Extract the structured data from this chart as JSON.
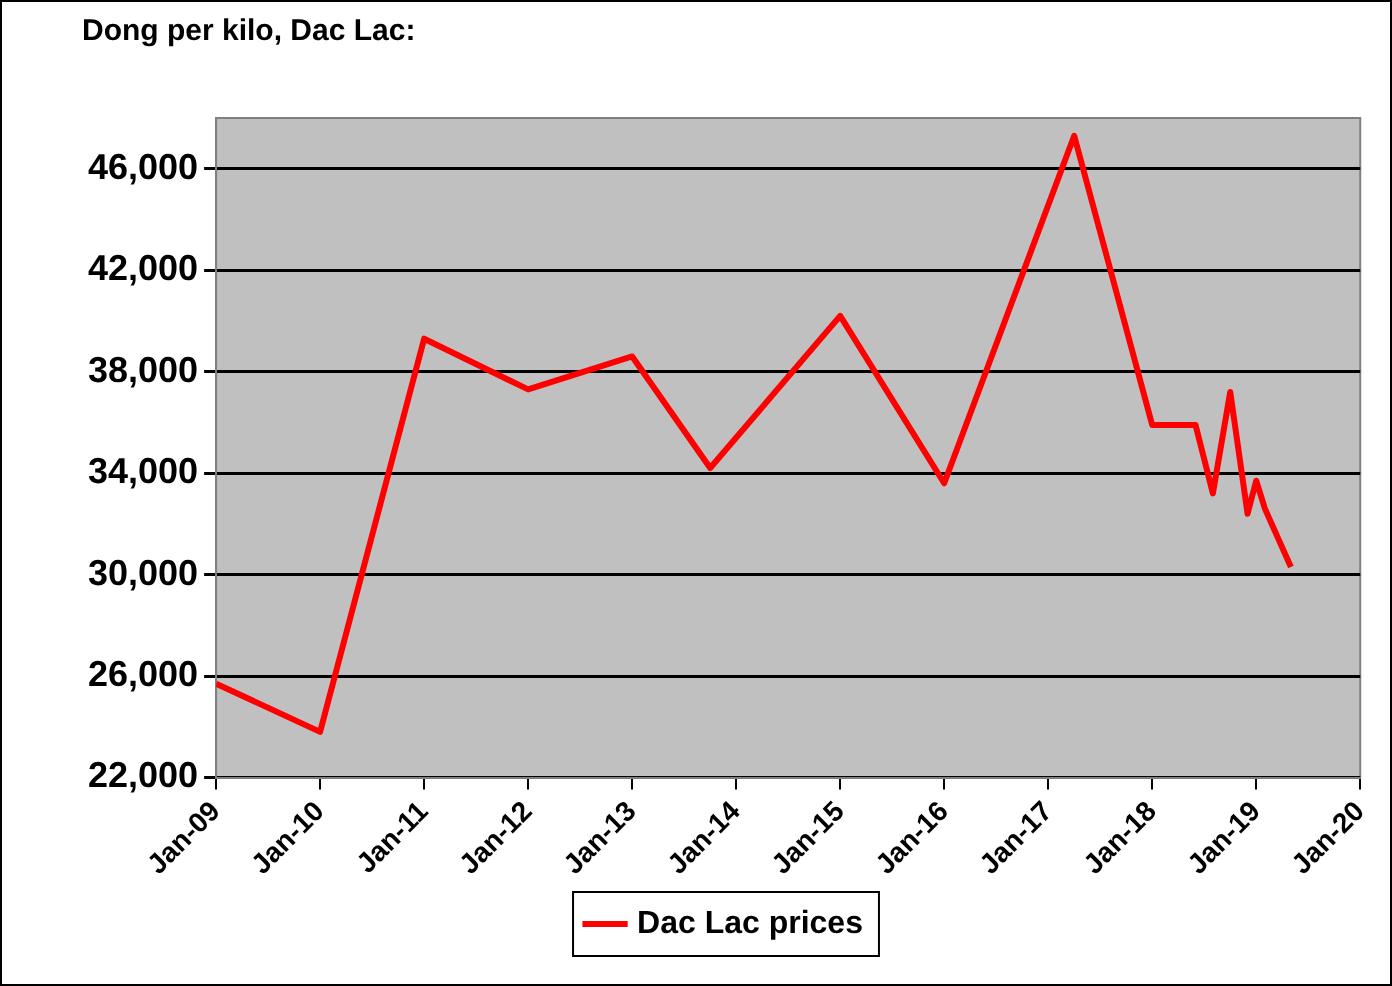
{
  "chart_data": {
    "type": "line",
    "title": "Dong per kilo, Dac Lac:",
    "x": [
      "2009-01",
      "2010-01",
      "2011-01",
      "2012-01",
      "2013-01",
      "2013-10",
      "2015-01",
      "2016-01",
      "2017-04",
      "2018-01",
      "2018-06",
      "2018-08",
      "2018-10",
      "2018-12",
      "2019-01",
      "2019-02",
      "2019-05"
    ],
    "series": [
      {
        "name": "Dac Lac prices",
        "color": "#ff0000",
        "values": [
          25700,
          23800,
          39300,
          37300,
          38600,
          34200,
          40200,
          33600,
          47300,
          35900,
          35900,
          33200,
          37200,
          32400,
          33700,
          32600,
          30300
        ]
      }
    ],
    "xlim": [
      "2009-01",
      "2020-01"
    ],
    "xticks": [
      {
        "value": "2009-01",
        "label": "Jan-09"
      },
      {
        "value": "2010-01",
        "label": "Jan-10"
      },
      {
        "value": "2011-01",
        "label": "Jan-11"
      },
      {
        "value": "2012-01",
        "label": "Jan-12"
      },
      {
        "value": "2013-01",
        "label": "Jan-13"
      },
      {
        "value": "2014-01",
        "label": "Jan-14"
      },
      {
        "value": "2015-01",
        "label": "Jan-15"
      },
      {
        "value": "2016-01",
        "label": "Jan-16"
      },
      {
        "value": "2017-01",
        "label": "Jan-17"
      },
      {
        "value": "2018-01",
        "label": "Jan-18"
      },
      {
        "value": "2019-01",
        "label": "Jan-19"
      },
      {
        "value": "2020-01",
        "label": "Jan-20"
      }
    ],
    "ylim": [
      22000,
      48000
    ],
    "yticks": [
      {
        "value": 22000,
        "label": "22,000"
      },
      {
        "value": 26000,
        "label": "26,000"
      },
      {
        "value": 30000,
        "label": "30,000"
      },
      {
        "value": 34000,
        "label": "34,000"
      },
      {
        "value": 38000,
        "label": "38,000"
      },
      {
        "value": 42000,
        "label": "42,000"
      },
      {
        "value": 46000,
        "label": "46,000"
      }
    ],
    "grid": "y",
    "legend": "bottom",
    "marker": "none",
    "line_style": "solid"
  }
}
